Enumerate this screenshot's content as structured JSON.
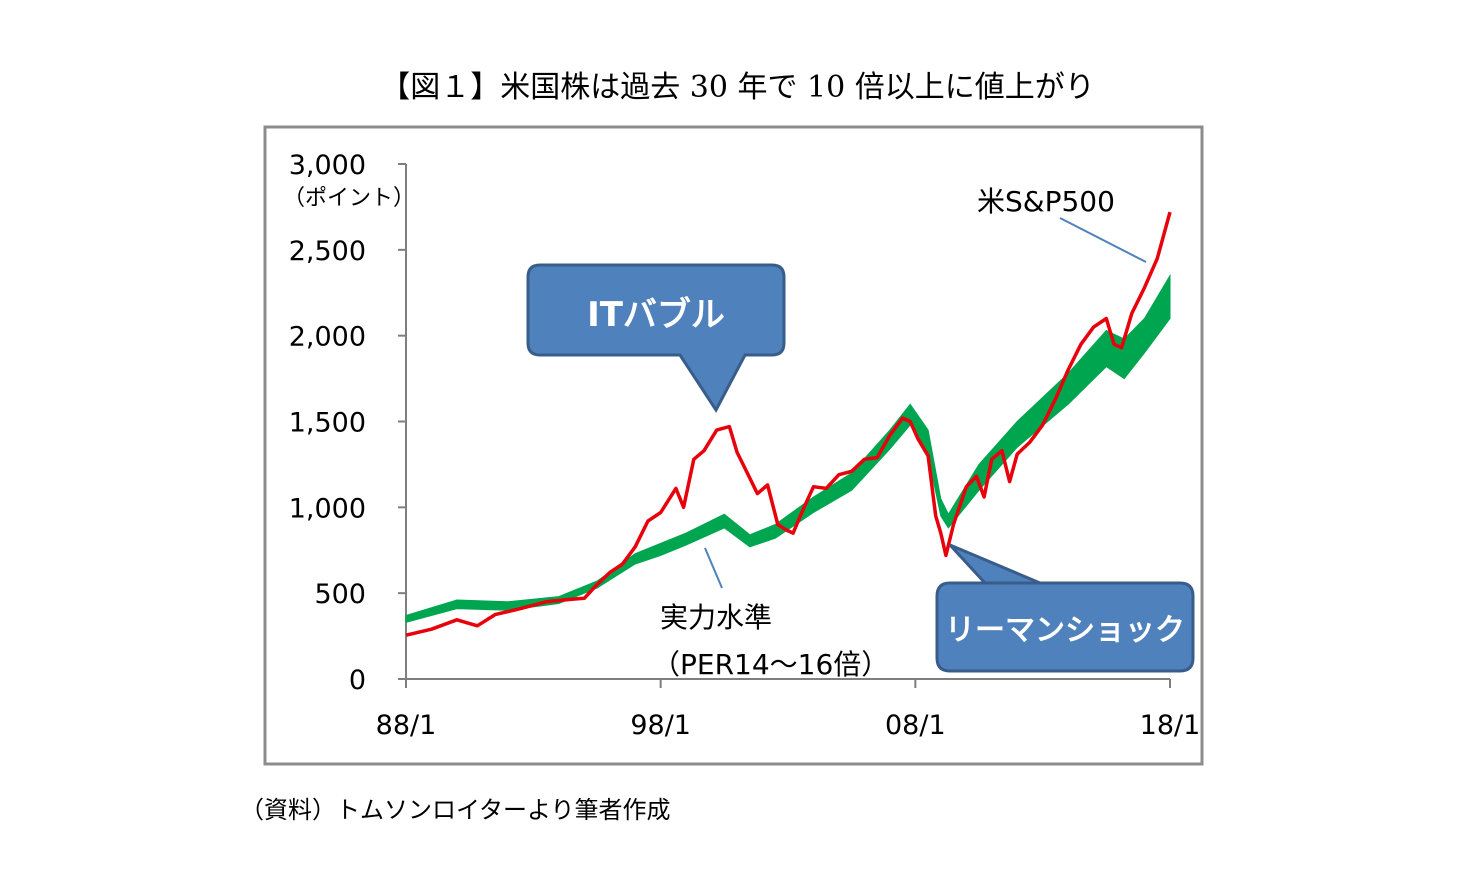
{
  "page": {
    "title": "【図１】米国株は過去 30 年で 10 倍以上に値上がり",
    "source": "（資料）トムソンロイターより筆者作成"
  },
  "chart_data": {
    "type": "line",
    "title": "【図１】米国株は過去 30 年で 10 倍以上に値上がり",
    "ylabel": "（ポイント）",
    "xlabel": "",
    "ylim": [
      0,
      3000
    ],
    "xlim": [
      1988.0,
      2018.0
    ],
    "x_ticks": [
      {
        "x": 1988.0,
        "label": "88/1"
      },
      {
        "x": 1998.0,
        "label": "98/1"
      },
      {
        "x": 2008.0,
        "label": "08/1"
      },
      {
        "x": 2018.0,
        "label": "18/1"
      }
    ],
    "y_ticks": [
      {
        "y": 0,
        "label": "0"
      },
      {
        "y": 500,
        "label": "500"
      },
      {
        "y": 1000,
        "label": "1,000"
      },
      {
        "y": 1500,
        "label": "1,500"
      },
      {
        "y": 2000,
        "label": "2,000"
      },
      {
        "y": 2500,
        "label": "2,500"
      },
      {
        "y": 3000,
        "label": "3,000"
      }
    ],
    "grid": false,
    "colors": {
      "sp500": "#e8000b",
      "band": "#00a550",
      "callout_fill": "#4f81bd",
      "callout_stroke": "#385d8a",
      "axis": "#7f7f7f"
    },
    "series": [
      {
        "name": "米S&P500",
        "x": [
          1988.0,
          1989.0,
          1990.0,
          1990.8,
          1991.5,
          1992.5,
          1993.5,
          1994.5,
          1995.0,
          1995.5,
          1996.0,
          1996.5,
          1997.0,
          1997.5,
          1998.0,
          1998.6,
          1998.9,
          1999.3,
          1999.7,
          2000.2,
          2000.7,
          2001.0,
          2001.4,
          2001.8,
          2002.2,
          2002.6,
          2002.9,
          2003.2,
          2003.6,
          2004.0,
          2004.5,
          2005.0,
          2005.5,
          2006.0,
          2006.5,
          2007.0,
          2007.5,
          2007.8,
          2008.1,
          2008.5,
          2008.8,
          2009.0,
          2009.2,
          2009.5,
          2010.0,
          2010.4,
          2010.7,
          2011.0,
          2011.4,
          2011.7,
          2012.0,
          2012.5,
          2013.0,
          2013.5,
          2014.0,
          2014.5,
          2015.0,
          2015.5,
          2015.8,
          2016.1,
          2016.5,
          2017.0,
          2017.5,
          2018.0
        ],
        "y": [
          255,
          290,
          345,
          310,
          375,
          410,
          450,
          465,
          470,
          550,
          620,
          670,
          770,
          920,
          970,
          1110,
          1000,
          1280,
          1330,
          1450,
          1470,
          1320,
          1200,
          1080,
          1130,
          900,
          870,
          850,
          990,
          1120,
          1110,
          1190,
          1210,
          1280,
          1290,
          1420,
          1520,
          1500,
          1400,
          1300,
          950,
          850,
          720,
          900,
          1120,
          1180,
          1060,
          1280,
          1330,
          1150,
          1310,
          1380,
          1480,
          1630,
          1800,
          1950,
          2050,
          2100,
          1950,
          1930,
          2130,
          2280,
          2450,
          2720
        ]
      },
      {
        "name": "実力水準",
        "subtitle": "（PER14〜16倍）",
        "x": [
          1988.0,
          1990.0,
          1992.0,
          1994.0,
          1995.5,
          1997.0,
          1998.0,
          1999.0,
          2000.5,
          2001.5,
          2002.5,
          2004.0,
          2005.5,
          2007.0,
          2007.8,
          2008.5,
          2009.0,
          2009.3,
          2010.5,
          2012.0,
          2014.0,
          2015.5,
          2016.2,
          2017.0,
          2018.0
        ],
        "low": [
          330,
          410,
          400,
          440,
          530,
          670,
          720,
          780,
          880,
          770,
          820,
          970,
          1100,
          1340,
          1480,
          1300,
          950,
          880,
          1100,
          1350,
          1600,
          1820,
          1750,
          1900,
          2100
        ],
        "high": [
          370,
          460,
          450,
          480,
          570,
          730,
          790,
          850,
          960,
          840,
          900,
          1060,
          1200,
          1450,
          1600,
          1450,
          1050,
          960,
          1250,
          1500,
          1780,
          2030,
          1980,
          2100,
          2350
        ]
      }
    ],
    "annotations": [
      {
        "text": "ITバブル",
        "kind": "callout"
      },
      {
        "text": "リーマンショック",
        "kind": "callout"
      },
      {
        "text": "米S&P500",
        "kind": "label"
      },
      {
        "text": "実力水準",
        "kind": "label"
      },
      {
        "text": "（PER14〜16倍）",
        "kind": "label"
      }
    ]
  }
}
